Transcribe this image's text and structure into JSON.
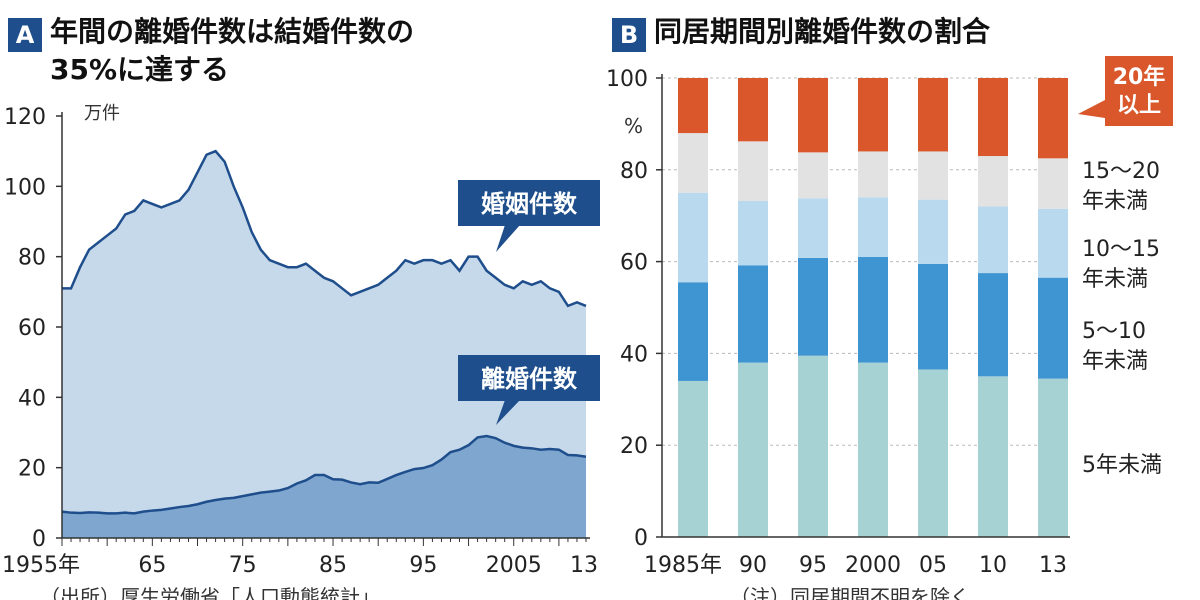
{
  "chart_data": [
    {
      "type": "area",
      "panel_label": "A",
      "title_line1": "年間の離婚件数は結婚件数の",
      "title_line2": "35%に達する",
      "unit": "万件",
      "ylim": [
        0,
        120
      ],
      "yticks": [
        0,
        20,
        40,
        60,
        80,
        100,
        120
      ],
      "x_tick_labels": [
        "1955年",
        "65",
        "75",
        "85",
        "95",
        "2005",
        "13"
      ],
      "x_tick_years": [
        1955,
        1965,
        1975,
        1985,
        1995,
        2005,
        2013
      ],
      "x": [
        1955,
        1956,
        1957,
        1958,
        1959,
        1960,
        1961,
        1962,
        1963,
        1964,
        1965,
        1966,
        1967,
        1968,
        1969,
        1970,
        1971,
        1972,
        1973,
        1974,
        1975,
        1976,
        1977,
        1978,
        1979,
        1980,
        1981,
        1982,
        1983,
        1984,
        1985,
        1986,
        1987,
        1988,
        1989,
        1990,
        1991,
        1992,
        1993,
        1994,
        1995,
        1996,
        1997,
        1998,
        1999,
        2000,
        2001,
        2002,
        2003,
        2004,
        2005,
        2006,
        2007,
        2008,
        2009,
        2010,
        2011,
        2012,
        2013
      ],
      "series": [
        {
          "name": "婚姻件数",
          "values": [
            71,
            71,
            77,
            82,
            84,
            86,
            88,
            92,
            93,
            96,
            95,
            94,
            95,
            96,
            99,
            104,
            109,
            110,
            107,
            100,
            94,
            87,
            82,
            79,
            78,
            77,
            77,
            78,
            76,
            74,
            73,
            71,
            69,
            70,
            71,
            72,
            74,
            76,
            79,
            78,
            79,
            79,
            78,
            79,
            76,
            80,
            80,
            76,
            74,
            72,
            71,
            73,
            72,
            73,
            71,
            70,
            66,
            67,
            66
          ],
          "color": "#c6d9ea"
        },
        {
          "name": "離婚件数",
          "values": [
            7.5,
            7.2,
            7.1,
            7.3,
            7.2,
            7.0,
            7.0,
            7.2,
            7.0,
            7.5,
            7.8,
            8.0,
            8.4,
            8.8,
            9.1,
            9.6,
            10.3,
            10.8,
            11.2,
            11.4,
            11.9,
            12.4,
            12.9,
            13.2,
            13.5,
            14.2,
            15.5,
            16.4,
            17.9,
            17.9,
            16.7,
            16.6,
            15.8,
            15.3,
            15.8,
            15.7,
            16.8,
            17.9,
            18.8,
            19.6,
            19.9,
            20.7,
            22.3,
            24.4,
            25.1,
            26.4,
            28.6,
            29.0,
            28.4,
            27.1,
            26.2,
            25.7,
            25.5,
            25.1,
            25.3,
            25.1,
            23.6,
            23.5,
            23.1
          ],
          "color": "#7fa6cf"
        }
      ],
      "annotations": [
        {
          "text": "婚姻件数",
          "target_series": "婚姻件数"
        },
        {
          "text": "離婚件数",
          "target_series": "離婚件数"
        }
      ],
      "source_note": "（出所）厚生労働省「人口動態統計」"
    },
    {
      "type": "bar",
      "stacked": true,
      "panel_label": "B",
      "title": "同居期間別離婚件数の割合",
      "unit": "%",
      "ylim": [
        0,
        100
      ],
      "yticks": [
        0,
        20,
        40,
        60,
        80,
        100
      ],
      "categories": [
        "1985年",
        "90",
        "95",
        "2000",
        "05",
        "10",
        "13"
      ],
      "series": [
        {
          "name": "5年未満",
          "label_line1": "5年未満",
          "label_line2": "",
          "values": [
            34,
            38,
            39.5,
            38,
            36.5,
            35,
            34.5
          ],
          "color": "#a7d2d3"
        },
        {
          "name": "5〜10年未満",
          "label_line1": "5〜10",
          "label_line2": "年未満",
          "values": [
            21.5,
            21.2,
            21.3,
            23,
            23,
            22.5,
            22
          ],
          "color": "#3f94d2"
        },
        {
          "name": "10〜15年未満",
          "label_line1": "10〜15",
          "label_line2": "年未満",
          "values": [
            19.5,
            14,
            13,
            13,
            14,
            14.5,
            15
          ],
          "color": "#b9d9ee"
        },
        {
          "name": "15〜20年未満",
          "label_line1": "15〜20",
          "label_line2": "年未満",
          "values": [
            13,
            13,
            10,
            10,
            10.5,
            11,
            11
          ],
          "color": "#e2e2e2"
        },
        {
          "name": "20年以上",
          "label_line1": "20年",
          "label_line2": "以上",
          "values": [
            12,
            13.8,
            16.2,
            16,
            16,
            17,
            17.5
          ],
          "color": "#d9572a"
        }
      ],
      "note": "（注）同居期間不明を除く"
    }
  ]
}
